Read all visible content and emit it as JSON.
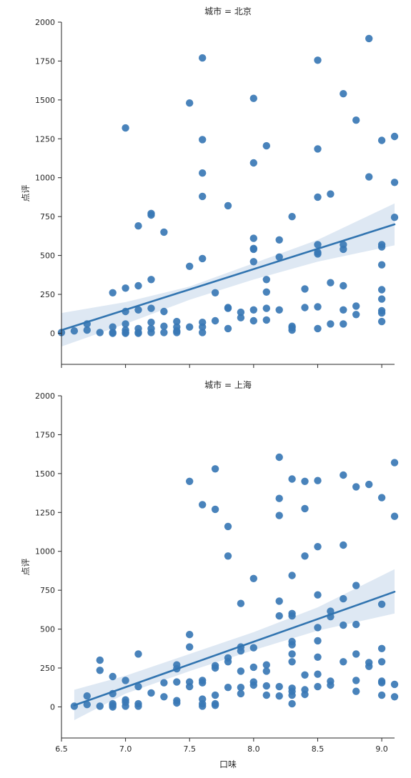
{
  "chart_data": [
    {
      "type": "scatter",
      "title": "城市 = 北京",
      "xlabel": "",
      "ylabel": "点评",
      "xlim": [
        6.5,
        9.1
      ],
      "ylim": [
        -200,
        2000
      ],
      "x_ticks": [
        "6.5",
        "7.0",
        "7.5",
        "8.0",
        "8.5",
        "9.0"
      ],
      "x_ticks_visible": false,
      "y_ticks": [
        "0",
        "250",
        "500",
        "750",
        "1000",
        "1250",
        "1500",
        "1750",
        "2000"
      ],
      "grid": false,
      "point_color": "#3a78b5",
      "regression": {
        "line": [
          [
            6.5,
            20
          ],
          [
            9.1,
            700
          ]
        ],
        "ci_upper": [
          [
            6.5,
            130
          ],
          [
            7.0,
            200
          ],
          [
            7.5,
            300
          ],
          [
            8.0,
            450
          ],
          [
            8.5,
            600
          ],
          [
            9.1,
            835
          ]
        ],
        "ci_lower": [
          [
            6.5,
            -85
          ],
          [
            7.0,
            60
          ],
          [
            7.5,
            215
          ],
          [
            8.0,
            345
          ],
          [
            8.5,
            460
          ],
          [
            9.1,
            565
          ]
        ]
      },
      "points": [
        [
          6.5,
          5
        ],
        [
          6.6,
          15
        ],
        [
          6.7,
          60
        ],
        [
          6.7,
          20
        ],
        [
          6.8,
          5
        ],
        [
          6.9,
          260
        ],
        [
          6.9,
          40
        ],
        [
          6.9,
          5
        ],
        [
          6.9,
          0
        ],
        [
          7.0,
          1320
        ],
        [
          7.0,
          290
        ],
        [
          7.0,
          140
        ],
        [
          7.0,
          60
        ],
        [
          7.0,
          20
        ],
        [
          7.0,
          5
        ],
        [
          7.0,
          0
        ],
        [
          7.1,
          690
        ],
        [
          7.1,
          305
        ],
        [
          7.1,
          150
        ],
        [
          7.1,
          30
        ],
        [
          7.1,
          5
        ],
        [
          7.1,
          0
        ],
        [
          7.2,
          770
        ],
        [
          7.2,
          760
        ],
        [
          7.2,
          345
        ],
        [
          7.2,
          160
        ],
        [
          7.2,
          70
        ],
        [
          7.2,
          30
        ],
        [
          7.2,
          5
        ],
        [
          7.3,
          650
        ],
        [
          7.3,
          140
        ],
        [
          7.3,
          45
        ],
        [
          7.3,
          5
        ],
        [
          7.4,
          75
        ],
        [
          7.4,
          40
        ],
        [
          7.4,
          15
        ],
        [
          7.4,
          5
        ],
        [
          7.5,
          1480
        ],
        [
          7.5,
          430
        ],
        [
          7.5,
          40
        ],
        [
          7.6,
          1770
        ],
        [
          7.6,
          1245
        ],
        [
          7.6,
          1030
        ],
        [
          7.6,
          880
        ],
        [
          7.6,
          480
        ],
        [
          7.6,
          70
        ],
        [
          7.6,
          40
        ],
        [
          7.6,
          5
        ],
        [
          7.7,
          260
        ],
        [
          7.7,
          80
        ],
        [
          7.8,
          820
        ],
        [
          7.8,
          165
        ],
        [
          7.8,
          160
        ],
        [
          7.8,
          30
        ],
        [
          7.9,
          135
        ],
        [
          7.9,
          100
        ],
        [
          8.0,
          1510
        ],
        [
          8.0,
          1095
        ],
        [
          8.0,
          610
        ],
        [
          8.0,
          545
        ],
        [
          8.0,
          540
        ],
        [
          8.0,
          460
        ],
        [
          8.0,
          150
        ],
        [
          8.0,
          80
        ],
        [
          8.1,
          1205
        ],
        [
          8.1,
          345
        ],
        [
          8.1,
          265
        ],
        [
          8.1,
          160
        ],
        [
          8.1,
          85
        ],
        [
          8.2,
          600
        ],
        [
          8.2,
          490
        ],
        [
          8.2,
          150
        ],
        [
          8.3,
          750
        ],
        [
          8.3,
          45
        ],
        [
          8.3,
          35
        ],
        [
          8.3,
          20
        ],
        [
          8.4,
          285
        ],
        [
          8.4,
          165
        ],
        [
          8.5,
          1755
        ],
        [
          8.5,
          1185
        ],
        [
          8.5,
          875
        ],
        [
          8.5,
          570
        ],
        [
          8.5,
          520
        ],
        [
          8.5,
          510
        ],
        [
          8.5,
          170
        ],
        [
          8.5,
          30
        ],
        [
          8.6,
          895
        ],
        [
          8.6,
          325
        ],
        [
          8.6,
          60
        ],
        [
          8.7,
          1540
        ],
        [
          8.7,
          570
        ],
        [
          8.7,
          540
        ],
        [
          8.7,
          305
        ],
        [
          8.7,
          150
        ],
        [
          8.7,
          60
        ],
        [
          8.8,
          1370
        ],
        [
          8.8,
          175
        ],
        [
          8.8,
          120
        ],
        [
          8.9,
          1895
        ],
        [
          8.9,
          1005
        ],
        [
          9.0,
          1240
        ],
        [
          9.0,
          570
        ],
        [
          9.0,
          555
        ],
        [
          9.0,
          440
        ],
        [
          9.0,
          280
        ],
        [
          9.0,
          220
        ],
        [
          9.0,
          145
        ],
        [
          9.0,
          130
        ],
        [
          9.0,
          75
        ],
        [
          9.1,
          1265
        ],
        [
          9.1,
          970
        ],
        [
          9.1,
          745
        ]
      ]
    },
    {
      "type": "scatter",
      "title": "城市 = 上海",
      "xlabel": "口味",
      "ylabel": "点评",
      "xlim": [
        6.5,
        9.1
      ],
      "ylim": [
        -200,
        2000
      ],
      "x_ticks": [
        "6.5",
        "7.0",
        "7.5",
        "8.0",
        "8.5",
        "9.0"
      ],
      "x_ticks_visible": true,
      "y_ticks": [
        "0",
        "250",
        "500",
        "750",
        "1000",
        "1250",
        "1500",
        "1750",
        "2000"
      ],
      "grid": false,
      "point_color": "#3a78b5",
      "regression": {
        "line": [
          [
            6.6,
            10
          ],
          [
            9.1,
            740
          ]
        ],
        "ci_upper": [
          [
            6.6,
            110
          ],
          [
            7.0,
            200
          ],
          [
            7.5,
            340
          ],
          [
            8.0,
            480
          ],
          [
            8.5,
            640
          ],
          [
            9.1,
            885
          ]
        ],
        "ci_lower": [
          [
            6.6,
            -85
          ],
          [
            7.0,
            85
          ],
          [
            7.5,
            230
          ],
          [
            8.0,
            365
          ],
          [
            8.5,
            490
          ],
          [
            9.1,
            600
          ]
        ]
      },
      "points": [
        [
          6.6,
          5
        ],
        [
          6.7,
          70
        ],
        [
          6.7,
          15
        ],
        [
          6.8,
          300
        ],
        [
          6.8,
          235
        ],
        [
          6.8,
          5
        ],
        [
          6.9,
          195
        ],
        [
          6.9,
          85
        ],
        [
          6.9,
          20
        ],
        [
          6.9,
          10
        ],
        [
          6.9,
          0
        ],
        [
          7.0,
          170
        ],
        [
          7.0,
          45
        ],
        [
          7.0,
          30
        ],
        [
          7.0,
          5
        ],
        [
          7.1,
          340
        ],
        [
          7.1,
          130
        ],
        [
          7.1,
          20
        ],
        [
          7.1,
          5
        ],
        [
          7.2,
          90
        ],
        [
          7.3,
          155
        ],
        [
          7.3,
          65
        ],
        [
          7.4,
          270
        ],
        [
          7.4,
          245
        ],
        [
          7.4,
          160
        ],
        [
          7.4,
          40
        ],
        [
          7.4,
          25
        ],
        [
          7.5,
          1450
        ],
        [
          7.5,
          465
        ],
        [
          7.5,
          385
        ],
        [
          7.5,
          160
        ],
        [
          7.5,
          130
        ],
        [
          7.6,
          1300
        ],
        [
          7.6,
          170
        ],
        [
          7.6,
          155
        ],
        [
          7.6,
          50
        ],
        [
          7.6,
          20
        ],
        [
          7.6,
          5
        ],
        [
          7.7,
          1530
        ],
        [
          7.7,
          1270
        ],
        [
          7.7,
          265
        ],
        [
          7.7,
          250
        ],
        [
          7.7,
          75
        ],
        [
          7.7,
          20
        ],
        [
          7.7,
          10
        ],
        [
          7.8,
          1160
        ],
        [
          7.8,
          970
        ],
        [
          7.8,
          315
        ],
        [
          7.8,
          290
        ],
        [
          7.8,
          125
        ],
        [
          7.9,
          665
        ],
        [
          7.9,
          385
        ],
        [
          7.9,
          360
        ],
        [
          7.9,
          230
        ],
        [
          7.9,
          125
        ],
        [
          7.9,
          85
        ],
        [
          8.0,
          825
        ],
        [
          8.0,
          380
        ],
        [
          8.0,
          255
        ],
        [
          8.0,
          160
        ],
        [
          8.0,
          140
        ],
        [
          8.1,
          270
        ],
        [
          8.1,
          230
        ],
        [
          8.1,
          135
        ],
        [
          8.1,
          75
        ],
        [
          8.2,
          1605
        ],
        [
          8.2,
          1340
        ],
        [
          8.2,
          1230
        ],
        [
          8.2,
          680
        ],
        [
          8.2,
          585
        ],
        [
          8.2,
          130
        ],
        [
          8.2,
          70
        ],
        [
          8.3,
          1465
        ],
        [
          8.3,
          845
        ],
        [
          8.3,
          600
        ],
        [
          8.3,
          585
        ],
        [
          8.3,
          420
        ],
        [
          8.3,
          400
        ],
        [
          8.3,
          340
        ],
        [
          8.3,
          290
        ],
        [
          8.3,
          120
        ],
        [
          8.3,
          100
        ],
        [
          8.3,
          75
        ],
        [
          8.3,
          20
        ],
        [
          8.4,
          1450
        ],
        [
          8.4,
          1275
        ],
        [
          8.4,
          970
        ],
        [
          8.4,
          205
        ],
        [
          8.4,
          110
        ],
        [
          8.4,
          80
        ],
        [
          8.5,
          1455
        ],
        [
          8.5,
          1030
        ],
        [
          8.5,
          720
        ],
        [
          8.5,
          510
        ],
        [
          8.5,
          425
        ],
        [
          8.5,
          320
        ],
        [
          8.5,
          210
        ],
        [
          8.5,
          130
        ],
        [
          8.6,
          615
        ],
        [
          8.6,
          580
        ],
        [
          8.6,
          165
        ],
        [
          8.6,
          140
        ],
        [
          8.7,
          1490
        ],
        [
          8.7,
          1040
        ],
        [
          8.7,
          695
        ],
        [
          8.7,
          525
        ],
        [
          8.7,
          290
        ],
        [
          8.8,
          1415
        ],
        [
          8.8,
          780
        ],
        [
          8.8,
          530
        ],
        [
          8.8,
          340
        ],
        [
          8.8,
          170
        ],
        [
          8.8,
          100
        ],
        [
          8.9,
          1430
        ],
        [
          8.9,
          285
        ],
        [
          8.9,
          260
        ],
        [
          9.0,
          1345
        ],
        [
          9.0,
          660
        ],
        [
          9.0,
          375
        ],
        [
          9.0,
          290
        ],
        [
          9.0,
          165
        ],
        [
          9.0,
          155
        ],
        [
          9.0,
          75
        ],
        [
          9.1,
          1570
        ],
        [
          9.1,
          1225
        ],
        [
          9.1,
          145
        ],
        [
          9.1,
          65
        ]
      ]
    }
  ]
}
